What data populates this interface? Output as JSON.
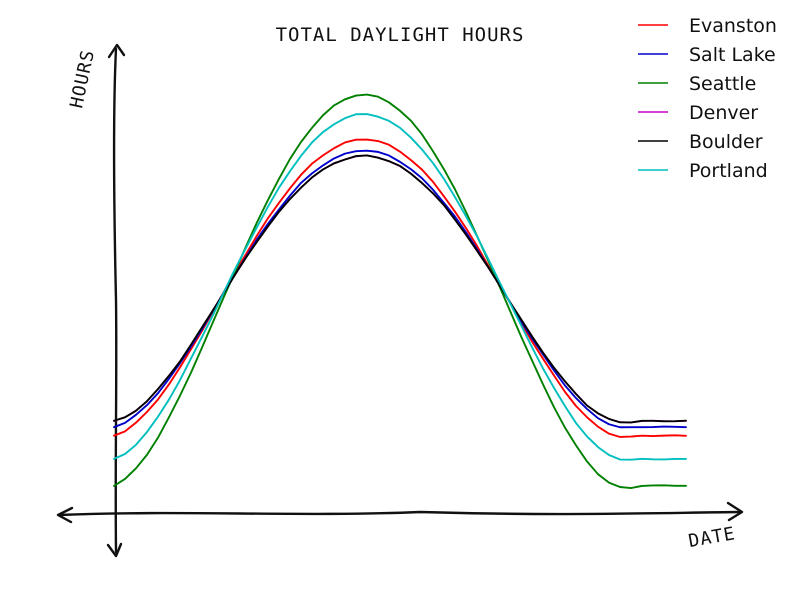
{
  "chart_data": {
    "type": "line",
    "title": "TOTAL DAYLIGHT HOURS",
    "xlabel": "DATE",
    "ylabel": "HOURS",
    "grid": false,
    "legend_position": "top-right",
    "axis_ticks_shown": false,
    "x": [
      0,
      1,
      2,
      3,
      4,
      5,
      6,
      7,
      8,
      9,
      10,
      11,
      12,
      13,
      14,
      15,
      16,
      17,
      18,
      19,
      20,
      21,
      22,
      23,
      24,
      25,
      26,
      27,
      28,
      29,
      30,
      31,
      32,
      33,
      34,
      35,
      36,
      37,
      38,
      39,
      40,
      41,
      42,
      43,
      44,
      45,
      46,
      47,
      48,
      49,
      50,
      51,
      52
    ],
    "series": [
      {
        "name": "Evanston",
        "color": "#ff0000",
        "values": [
          9.1,
          9.18,
          9.32,
          9.5,
          9.72,
          9.98,
          10.26,
          10.57,
          10.89,
          11.22,
          11.55,
          11.88,
          12.2,
          12.51,
          12.8,
          13.07,
          13.32,
          13.54,
          13.73,
          13.88,
          14.0,
          14.09,
          14.14,
          14.15,
          14.12,
          14.05,
          13.94,
          13.8,
          13.63,
          13.42,
          13.18,
          12.92,
          12.63,
          12.33,
          12.01,
          11.69,
          11.36,
          11.03,
          10.71,
          10.41,
          10.12,
          9.85,
          9.61,
          9.41,
          9.25,
          9.14,
          9.08,
          9.08,
          9.1,
          9.1,
          9.1,
          9.1,
          9.1
        ]
      },
      {
        "name": "Salt Lake",
        "color": "#0000cc",
        "values": [
          9.25,
          9.32,
          9.45,
          9.62,
          9.83,
          10.07,
          10.33,
          10.62,
          10.92,
          11.23,
          11.54,
          11.85,
          12.15,
          12.44,
          12.71,
          12.96,
          13.19,
          13.4,
          13.57,
          13.71,
          13.82,
          13.9,
          13.95,
          13.96,
          13.93,
          13.87,
          13.77,
          13.64,
          13.48,
          13.29,
          13.07,
          12.83,
          12.56,
          12.28,
          11.98,
          11.68,
          11.37,
          11.06,
          10.76,
          10.48,
          10.21,
          9.96,
          9.74,
          9.55,
          9.4,
          9.3,
          9.24,
          9.24,
          9.25,
          9.25,
          9.25,
          9.25,
          9.25
        ]
      },
      {
        "name": "Seattle",
        "color": "#008000",
        "values": [
          8.25,
          8.36,
          8.54,
          8.78,
          9.07,
          9.41,
          9.78,
          10.18,
          10.6,
          11.03,
          11.47,
          11.9,
          12.32,
          12.73,
          13.12,
          13.48,
          13.81,
          14.1,
          14.35,
          14.56,
          14.72,
          14.83,
          14.9,
          14.91,
          14.87,
          14.78,
          14.64,
          14.46,
          14.23,
          13.95,
          13.64,
          13.29,
          12.91,
          12.51,
          12.09,
          11.66,
          11.23,
          10.8,
          10.38,
          9.97,
          9.59,
          9.24,
          8.93,
          8.66,
          8.45,
          8.3,
          8.22,
          8.21,
          8.25,
          8.25,
          8.25,
          8.25,
          8.25
        ]
      },
      {
        "name": "Denver",
        "color": "#cc00cc",
        "values": [
          9.35,
          9.41,
          9.53,
          9.69,
          9.89,
          10.12,
          10.37,
          10.65,
          10.94,
          11.24,
          11.54,
          11.84,
          12.13,
          12.41,
          12.67,
          12.91,
          13.13,
          13.33,
          13.5,
          13.63,
          13.74,
          13.81,
          13.86,
          13.87,
          13.84,
          13.78,
          13.69,
          13.56,
          13.41,
          13.23,
          13.02,
          12.78,
          12.53,
          12.25,
          11.97,
          11.68,
          11.38,
          11.08,
          10.79,
          10.52,
          10.26,
          10.02,
          9.81,
          9.62,
          9.48,
          9.38,
          9.33,
          9.33,
          9.35,
          9.35,
          9.35,
          9.35,
          9.35
        ]
      },
      {
        "name": "Boulder",
        "color": "#000000",
        "values": [
          9.35,
          9.41,
          9.53,
          9.69,
          9.89,
          10.12,
          10.37,
          10.65,
          10.94,
          11.24,
          11.54,
          11.84,
          12.13,
          12.41,
          12.67,
          12.91,
          13.13,
          13.33,
          13.5,
          13.63,
          13.74,
          13.81,
          13.86,
          13.87,
          13.84,
          13.78,
          13.69,
          13.56,
          13.41,
          13.23,
          13.02,
          12.78,
          12.53,
          12.25,
          11.97,
          11.68,
          11.38,
          11.08,
          10.79,
          10.52,
          10.26,
          10.02,
          9.81,
          9.62,
          9.48,
          9.38,
          9.33,
          9.33,
          9.35,
          9.35,
          9.35,
          9.35,
          9.35
        ]
      },
      {
        "name": "Portland",
        "color": "#00bfbf",
        "values": [
          8.7,
          8.79,
          8.95,
          9.16,
          9.42,
          9.72,
          10.05,
          10.41,
          10.78,
          11.16,
          11.55,
          11.93,
          12.3,
          12.66,
          13.0,
          13.32,
          13.61,
          13.87,
          14.09,
          14.27,
          14.41,
          14.51,
          14.57,
          14.58,
          14.54,
          14.46,
          14.34,
          14.18,
          13.98,
          13.74,
          13.47,
          13.17,
          12.84,
          12.49,
          12.12,
          11.74,
          11.36,
          10.98,
          10.61,
          10.25,
          9.91,
          9.6,
          9.32,
          9.09,
          8.9,
          8.77,
          8.7,
          8.69,
          8.7,
          8.7,
          8.7,
          8.7,
          8.7
        ]
      }
    ],
    "xlim": [
      0,
      52
    ],
    "ylim": [
      7.8,
      15.5
    ]
  }
}
